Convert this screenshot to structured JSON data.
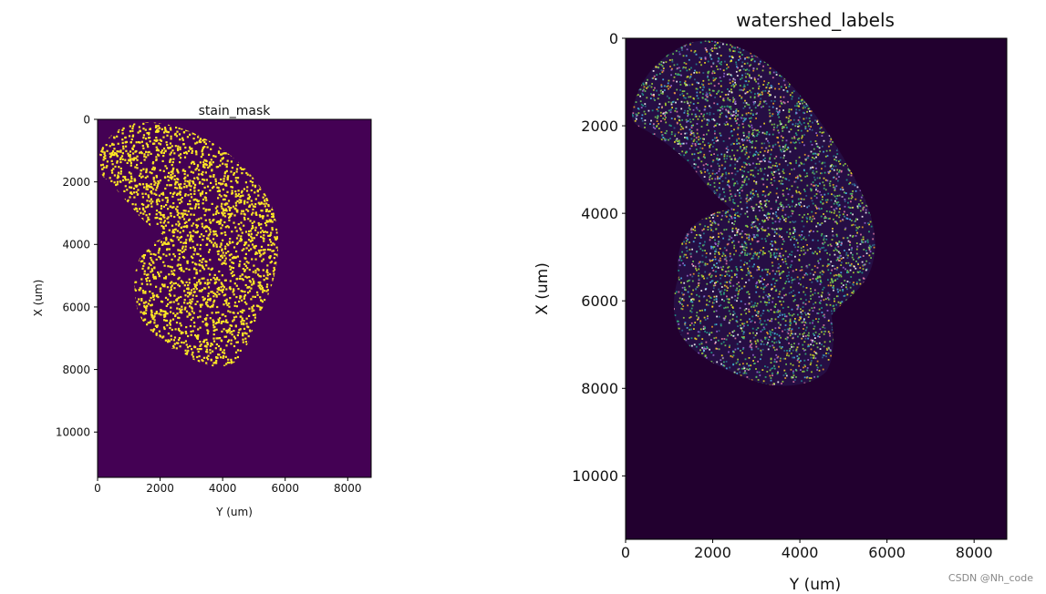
{
  "chart_data": [
    {
      "type": "heatmap",
      "title": "stain_mask",
      "xlabel": "Y (um)",
      "ylabel": "X (um)",
      "x_ticks": [
        "0",
        "2000",
        "4000",
        "6000",
        "8000"
      ],
      "y_ticks": [
        "0",
        "2000",
        "4000",
        "6000",
        "8000",
        "10000"
      ],
      "xlim": [
        0,
        8750
      ],
      "ylim": [
        11450,
        0
      ],
      "colormap": "viridis",
      "background_color": "#440154",
      "foreground_color": "#fde725",
      "content": "binary mask of stained tissue region",
      "grid": false
    },
    {
      "type": "heatmap",
      "title": "watershed_labels",
      "xlabel": "Y (um)",
      "ylabel": "X (um)",
      "x_ticks": [
        "0",
        "2000",
        "4000",
        "6000",
        "8000"
      ],
      "y_ticks": [
        "0",
        "2000",
        "4000",
        "6000",
        "8000",
        "10000"
      ],
      "xlim": [
        0,
        8750
      ],
      "ylim": [
        11450,
        0
      ],
      "colormap": "random label colors",
      "background_color": "#22002f",
      "label_colors": [
        "#fde725",
        "#35b779",
        "#31688e",
        "#7ad151",
        "#a0da39",
        "#26828e",
        "#6ece58",
        "#b5de2b",
        "#1f9e89",
        "#f5a623",
        "#e67ea8",
        "#9b6cd6",
        "#4fb3e8",
        "#ffffff"
      ],
      "content": "watershed segmentation labels of cells",
      "grid": false
    }
  ],
  "watermark": "CSDN @Nh_code"
}
